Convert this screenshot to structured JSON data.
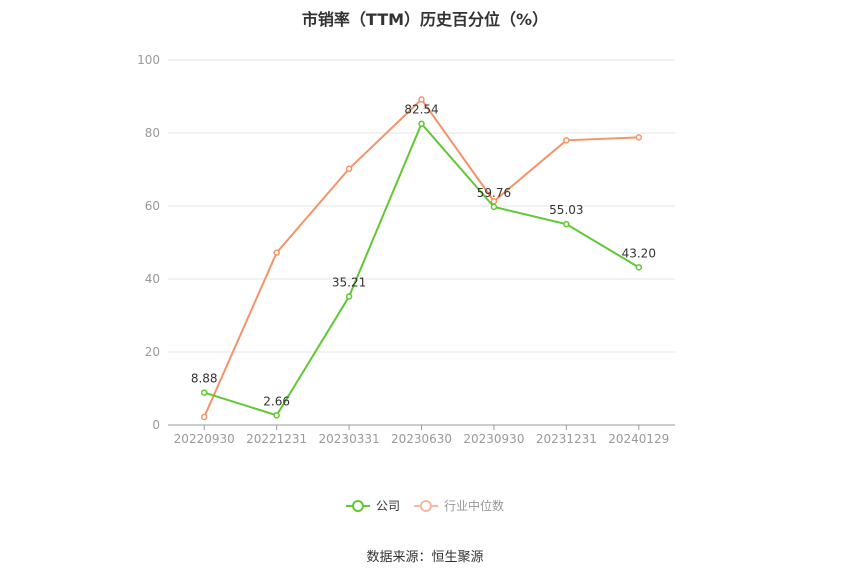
{
  "chart_data": {
    "type": "line",
    "title": "市销率（TTM）历史百分位（%）",
    "categories": [
      "20220930",
      "20221231",
      "20230331",
      "20230630",
      "20230930",
      "20231231",
      "20240129"
    ],
    "ylim": [
      0,
      100
    ],
    "yticks": [
      0,
      20,
      40,
      60,
      80,
      100
    ],
    "grid": true,
    "legend_position": "bottom",
    "series": [
      {
        "name": "公司",
        "color": "#5fc832",
        "values": [
          8.88,
          2.66,
          35.21,
          82.54,
          59.76,
          55.03,
          43.2
        ],
        "labels": [
          "8.88",
          "2.66",
          "35.21",
          "82.54",
          "59.76",
          "55.03",
          "43.20"
        ]
      },
      {
        "name": "行业中位数",
        "color": "#f39468",
        "values": [
          2.2,
          47.2,
          70.2,
          89.2,
          61.3,
          78.0,
          78.8
        ],
        "labels": []
      }
    ]
  },
  "source": "数据来源：恒生聚源"
}
